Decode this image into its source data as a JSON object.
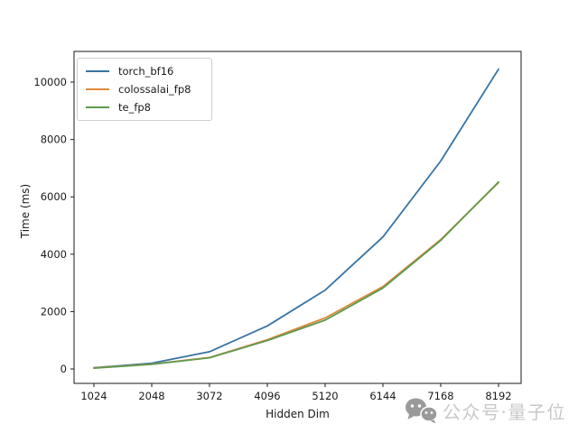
{
  "chart_data": {
    "type": "line",
    "title": "",
    "xlabel": "Hidden Dim",
    "ylabel": "Time (ms)",
    "x": [
      1024,
      2048,
      3072,
      4096,
      5120,
      6144,
      7168,
      8192
    ],
    "x_tick_labels": [
      "1024",
      "2048",
      "3072",
      "4096",
      "5120",
      "6144",
      "7168",
      "8192"
    ],
    "y_ticks": [
      0,
      2000,
      4000,
      6000,
      8000,
      10000
    ],
    "y_tick_labels": [
      "0",
      "2000",
      "4000",
      "6000",
      "8000",
      "10000"
    ],
    "xlim": [
      672,
      8592
    ],
    "ylim": [
      -503,
      11070
    ],
    "grid": false,
    "legend_position": "upper left",
    "frame_color": "#1a1a1a",
    "series": [
      {
        "name": "torch_bf16",
        "color": "#3773a4",
        "values": [
          40,
          200,
          600,
          1500,
          2750,
          4600,
          7250,
          10450
        ]
      },
      {
        "name": "colossalai_fp8",
        "color": "#dd8a3e",
        "values": [
          35,
          170,
          400,
          1020,
          1780,
          2870,
          4510,
          6500
        ]
      },
      {
        "name": "te_fp8",
        "color": "#5f9a4e",
        "values": [
          30,
          160,
          390,
          990,
          1700,
          2820,
          4480,
          6520
        ]
      }
    ]
  },
  "watermark": {
    "text": "公众号·量子位",
    "icon": "wechat-chat-bubbles-icon",
    "icon_color": "#9a9a9a",
    "text_color": "#c8c8c8"
  }
}
